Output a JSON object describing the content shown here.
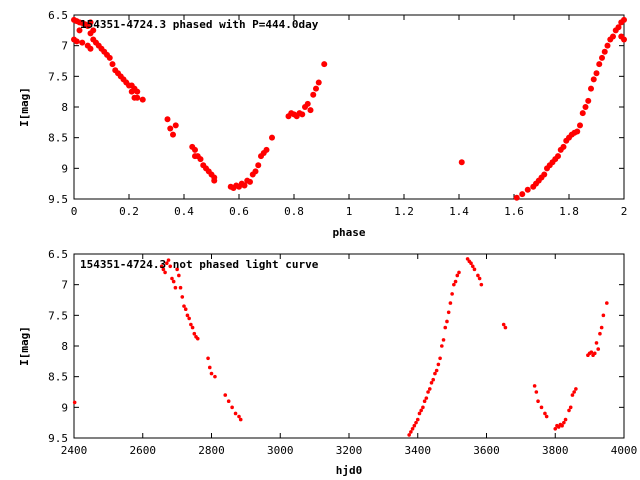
{
  "chart_data": [
    {
      "type": "scatter",
      "title": "154351-4724.3 phased with P=444.0day",
      "xlabel": "phase",
      "ylabel": "I[mag]",
      "xlim": [
        0,
        2
      ],
      "ylim": [
        6.5,
        9.5
      ],
      "y_inverted": true,
      "x_ticks": [
        "0",
        "0.2",
        "0.4",
        "0.6",
        "0.8",
        "1",
        "1.2",
        "1.4",
        "1.6",
        "1.8",
        "2"
      ],
      "y_ticks": [
        "6.5",
        "7",
        "7.5",
        "8",
        "8.5",
        "9",
        "9.5"
      ],
      "grid": false,
      "marker_color": "#ff0000",
      "series": [
        {
          "points": [
            [
              0.0,
              6.58
            ],
            [
              0.01,
              6.6
            ],
            [
              0.02,
              6.62
            ],
            [
              0.02,
              6.75
            ],
            [
              0.03,
              6.63
            ],
            [
              0.04,
              6.65
            ],
            [
              0.05,
              6.68
            ],
            [
              0.06,
              6.62
            ],
            [
              0.06,
              6.8
            ],
            [
              0.07,
              6.75
            ],
            [
              0.07,
              6.9
            ],
            [
              0.08,
              6.95
            ],
            [
              0.09,
              7.0
            ],
            [
              0.1,
              7.05
            ],
            [
              0.11,
              7.1
            ],
            [
              0.0,
              6.9
            ],
            [
              0.01,
              6.93
            ],
            [
              0.03,
              6.95
            ],
            [
              0.05,
              7.0
            ],
            [
              0.06,
              7.05
            ],
            [
              0.12,
              7.15
            ],
            [
              0.13,
              7.2
            ],
            [
              0.14,
              7.3
            ],
            [
              0.15,
              7.4
            ],
            [
              0.16,
              7.45
            ],
            [
              0.17,
              7.5
            ],
            [
              0.18,
              7.55
            ],
            [
              0.19,
              7.6
            ],
            [
              0.2,
              7.65
            ],
            [
              0.21,
              7.65
            ],
            [
              0.21,
              7.75
            ],
            [
              0.22,
              7.7
            ],
            [
              0.22,
              7.85
            ],
            [
              0.23,
              7.75
            ],
            [
              0.23,
              7.85
            ],
            [
              0.25,
              7.88
            ],
            [
              0.34,
              8.2
            ],
            [
              0.35,
              8.35
            ],
            [
              0.36,
              8.45
            ],
            [
              0.37,
              8.3
            ],
            [
              0.43,
              8.65
            ],
            [
              0.44,
              8.7
            ],
            [
              0.44,
              8.8
            ],
            [
              0.45,
              8.8
            ],
            [
              0.46,
              8.85
            ],
            [
              0.47,
              8.95
            ],
            [
              0.48,
              9.0
            ],
            [
              0.49,
              9.05
            ],
            [
              0.5,
              9.1
            ],
            [
              0.51,
              9.15
            ],
            [
              0.51,
              9.2
            ],
            [
              0.57,
              9.3
            ],
            [
              0.58,
              9.32
            ],
            [
              0.59,
              9.28
            ],
            [
              0.6,
              9.3
            ],
            [
              0.61,
              9.25
            ],
            [
              0.62,
              9.28
            ],
            [
              0.63,
              9.2
            ],
            [
              0.64,
              9.22
            ],
            [
              0.65,
              9.1
            ],
            [
              0.66,
              9.05
            ],
            [
              0.67,
              8.95
            ],
            [
              0.68,
              8.8
            ],
            [
              0.69,
              8.75
            ],
            [
              0.7,
              8.7
            ],
            [
              0.72,
              8.5
            ],
            [
              0.78,
              8.15
            ],
            [
              0.79,
              8.1
            ],
            [
              0.8,
              8.12
            ],
            [
              0.81,
              8.15
            ],
            [
              0.82,
              8.1
            ],
            [
              0.83,
              8.12
            ],
            [
              0.84,
              8.0
            ],
            [
              0.85,
              7.95
            ],
            [
              0.86,
              8.05
            ],
            [
              0.87,
              7.8
            ],
            [
              0.88,
              7.7
            ],
            [
              0.89,
              7.6
            ],
            [
              0.91,
              7.3
            ],
            [
              1.41,
              8.9
            ],
            [
              1.61,
              9.48
            ],
            [
              1.63,
              9.42
            ],
            [
              1.65,
              9.35
            ],
            [
              1.67,
              9.3
            ],
            [
              1.68,
              9.25
            ],
            [
              1.69,
              9.2
            ],
            [
              1.7,
              9.15
            ],
            [
              1.71,
              9.1
            ],
            [
              1.72,
              9.0
            ],
            [
              1.73,
              8.95
            ],
            [
              1.74,
              8.9
            ],
            [
              1.75,
              8.85
            ],
            [
              1.76,
              8.8
            ],
            [
              1.77,
              8.7
            ],
            [
              1.78,
              8.65
            ],
            [
              1.79,
              8.55
            ],
            [
              1.8,
              8.5
            ],
            [
              1.81,
              8.45
            ],
            [
              1.82,
              8.42
            ],
            [
              1.83,
              8.4
            ],
            [
              1.84,
              8.3
            ],
            [
              1.85,
              8.1
            ],
            [
              1.86,
              8.0
            ],
            [
              1.87,
              7.9
            ],
            [
              1.88,
              7.7
            ],
            [
              1.89,
              7.55
            ],
            [
              1.9,
              7.45
            ],
            [
              1.91,
              7.3
            ],
            [
              1.92,
              7.2
            ],
            [
              1.93,
              7.1
            ],
            [
              1.94,
              7.0
            ],
            [
              1.95,
              6.9
            ],
            [
              1.96,
              6.85
            ],
            [
              1.97,
              6.75
            ],
            [
              1.98,
              6.7
            ],
            [
              1.99,
              6.62
            ],
            [
              2.0,
              6.58
            ],
            [
              1.99,
              6.85
            ],
            [
              2.0,
              6.9
            ]
          ]
        }
      ]
    },
    {
      "type": "scatter",
      "title": "154351-4724.3 not phased light curve",
      "xlabel": "hjd0",
      "ylabel": "I[mag]",
      "xlim": [
        2400,
        4000
      ],
      "ylim": [
        6.5,
        9.5
      ],
      "y_inverted": true,
      "x_ticks": [
        "2400",
        "2600",
        "2800",
        "3000",
        "3200",
        "3400",
        "3600",
        "3800",
        "4000"
      ],
      "y_ticks": [
        "6.5",
        "7",
        "7.5",
        "8",
        "8.5",
        "9",
        "9.5"
      ],
      "grid": false,
      "marker_color": "#ff0000",
      "series": [
        {
          "points": [
            [
              2402,
              8.92
            ],
            [
              2655,
              6.7
            ],
            [
              2660,
              6.75
            ],
            [
              2665,
              6.8
            ],
            [
              2670,
              6.65
            ],
            [
              2675,
              6.6
            ],
            [
              2680,
              6.7
            ],
            [
              2685,
              6.9
            ],
            [
              2690,
              6.95
            ],
            [
              2695,
              7.05
            ],
            [
              2700,
              6.75
            ],
            [
              2705,
              6.85
            ],
            [
              2710,
              7.05
            ],
            [
              2715,
              7.2
            ],
            [
              2720,
              7.35
            ],
            [
              2725,
              7.4
            ],
            [
              2730,
              7.5
            ],
            [
              2735,
              7.55
            ],
            [
              2740,
              7.65
            ],
            [
              2745,
              7.7
            ],
            [
              2750,
              7.8
            ],
            [
              2755,
              7.85
            ],
            [
              2760,
              7.88
            ],
            [
              2790,
              8.2
            ],
            [
              2795,
              8.35
            ],
            [
              2800,
              8.45
            ],
            [
              2810,
              8.5
            ],
            [
              2840,
              8.8
            ],
            [
              2850,
              8.9
            ],
            [
              2860,
              9.0
            ],
            [
              2870,
              9.1
            ],
            [
              2880,
              9.15
            ],
            [
              2885,
              9.2
            ],
            [
              3375,
              9.45
            ],
            [
              3380,
              9.4
            ],
            [
              3385,
              9.35
            ],
            [
              3390,
              9.3
            ],
            [
              3395,
              9.25
            ],
            [
              3400,
              9.2
            ],
            [
              3405,
              9.1
            ],
            [
              3410,
              9.05
            ],
            [
              3415,
              9.0
            ],
            [
              3420,
              8.9
            ],
            [
              3425,
              8.85
            ],
            [
              3430,
              8.75
            ],
            [
              3435,
              8.7
            ],
            [
              3440,
              8.6
            ],
            [
              3445,
              8.55
            ],
            [
              3450,
              8.45
            ],
            [
              3455,
              8.4
            ],
            [
              3460,
              8.3
            ],
            [
              3465,
              8.2
            ],
            [
              3470,
              8.0
            ],
            [
              3475,
              7.9
            ],
            [
              3480,
              7.7
            ],
            [
              3485,
              7.6
            ],
            [
              3490,
              7.45
            ],
            [
              3495,
              7.3
            ],
            [
              3500,
              7.15
            ],
            [
              3505,
              7.0
            ],
            [
              3510,
              6.95
            ],
            [
              3515,
              6.85
            ],
            [
              3520,
              6.8
            ],
            [
              3545,
              6.58
            ],
            [
              3550,
              6.62
            ],
            [
              3555,
              6.65
            ],
            [
              3560,
              6.7
            ],
            [
              3565,
              6.75
            ],
            [
              3575,
              6.85
            ],
            [
              3580,
              6.9
            ],
            [
              3585,
              7.0
            ],
            [
              3650,
              7.65
            ],
            [
              3655,
              7.7
            ],
            [
              3740,
              8.65
            ],
            [
              3745,
              8.75
            ],
            [
              3750,
              8.9
            ],
            [
              3760,
              9.0
            ],
            [
              3770,
              9.1
            ],
            [
              3775,
              9.15
            ],
            [
              3800,
              9.35
            ],
            [
              3805,
              9.3
            ],
            [
              3810,
              9.32
            ],
            [
              3815,
              9.28
            ],
            [
              3820,
              9.3
            ],
            [
              3825,
              9.25
            ],
            [
              3830,
              9.2
            ],
            [
              3840,
              9.05
            ],
            [
              3845,
              9.0
            ],
            [
              3850,
              8.8
            ],
            [
              3855,
              8.75
            ],
            [
              3860,
              8.7
            ],
            [
              3895,
              8.15
            ],
            [
              3900,
              8.12
            ],
            [
              3905,
              8.1
            ],
            [
              3910,
              8.15
            ],
            [
              3915,
              8.12
            ],
            [
              3920,
              7.95
            ],
            [
              3925,
              8.05
            ],
            [
              3930,
              7.8
            ],
            [
              3935,
              7.7
            ],
            [
              3940,
              7.5
            ],
            [
              3950,
              7.3
            ]
          ]
        }
      ]
    }
  ]
}
